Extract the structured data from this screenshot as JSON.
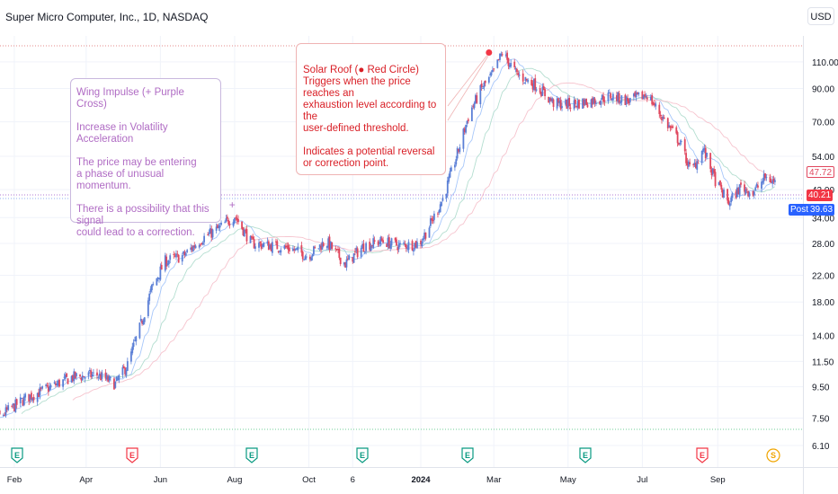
{
  "header": {
    "title": "Super Micro Computer, Inc., 1D, NASDAQ",
    "currency": "USD"
  },
  "annotations": {
    "left_box": "Wing Impulse (+ Purple Cross)\n\nIncrease in Volatility Acceleration\n\nThe price may be entering\na phase of unusual momentum.\n\nThere is a possibility that this signal\ncould lead to a correction.",
    "right_box_title": "Solar Roof (● Red Circle)",
    "right_box_body": "\nTriggers when the price reaches an\nexhaustion level according to the\nuser-defined threshold.\n\nIndicates a potential reversal\nor correction point.",
    "purple_marker": "+"
  },
  "price_tags": {
    "upper": "47.72",
    "current": "40.21",
    "post_label": "Post",
    "post_value": "39.63"
  },
  "colors": {
    "up": "#5b7fd6",
    "down": "#e0475e",
    "callout_purple": "#b06cc4",
    "callout_red": "#d91f26",
    "post": "#2962ff",
    "current": "#f23645"
  },
  "events": [
    {
      "type": "E",
      "color": "#089981"
    },
    {
      "type": "E",
      "color": "#f23645"
    },
    {
      "type": "E",
      "color": "#089981"
    },
    {
      "type": "E",
      "color": "#089981"
    },
    {
      "type": "E",
      "color": "#089981"
    },
    {
      "type": "E",
      "color": "#089981"
    },
    {
      "type": "E",
      "color": "#f23645"
    },
    {
      "type": "S",
      "color": "#f0a500"
    }
  ],
  "chart_data": {
    "type": "candlestick",
    "scale": "log",
    "ylim": [
      6.1,
      125
    ],
    "y_ticks": [
      "110.00",
      "90.00",
      "70.00",
      "54.00",
      "42.00",
      "34.00",
      "28.00",
      "22.00",
      "18.00",
      "14.00",
      "11.50",
      "9.50",
      "7.50",
      "6.10"
    ],
    "x_ticks": [
      "Feb",
      "Apr",
      "Jun",
      "Aug",
      "Oct",
      "6",
      "2024",
      "Mar",
      "May",
      "Jul",
      "Sep"
    ],
    "x_dates": [
      "2023-02-01",
      "2023-04-01",
      "2023-06-01",
      "2023-08-01",
      "2023-10-01",
      "2023-11-06",
      "2024-01-01",
      "2024-03-01",
      "2024-05-01",
      "2024-07-01",
      "2024-09-01"
    ],
    "series": [
      {
        "name": "",
        "points": [
          [
            "2023-01-03",
            7.0
          ],
          [
            "2023-01-20",
            7.6
          ],
          [
            "2023-02-10",
            8.7
          ],
          [
            "2023-03-01",
            9.4
          ],
          [
            "2023-03-20",
            10.2
          ],
          [
            "2023-04-10",
            10.4
          ],
          [
            "2023-04-25",
            9.7
          ],
          [
            "2023-05-05",
            11.2
          ],
          [
            "2023-05-15",
            14.8
          ],
          [
            "2023-05-25",
            20.0
          ],
          [
            "2023-06-05",
            24.5
          ],
          [
            "2023-06-20",
            25.5
          ],
          [
            "2023-07-05",
            29.0
          ],
          [
            "2023-07-20",
            31.5
          ],
          [
            "2023-08-01",
            34.5
          ],
          [
            "2023-08-15",
            28.0
          ],
          [
            "2023-08-31",
            27.5
          ],
          [
            "2023-09-15",
            27.0
          ],
          [
            "2023-09-30",
            25.5
          ],
          [
            "2023-10-15",
            28.5
          ],
          [
            "2023-10-31",
            24.0
          ],
          [
            "2023-11-15",
            27.5
          ],
          [
            "2023-11-30",
            28.5
          ],
          [
            "2023-12-15",
            27.5
          ],
          [
            "2023-12-31",
            28.0
          ],
          [
            "2024-01-10",
            33.0
          ],
          [
            "2024-01-20",
            40.0
          ],
          [
            "2024-01-31",
            55.0
          ],
          [
            "2024-02-10",
            75.0
          ],
          [
            "2024-02-20",
            90.0
          ],
          [
            "2024-02-29",
            100.0
          ],
          [
            "2024-03-08",
            118.0
          ],
          [
            "2024-03-20",
            100.0
          ],
          [
            "2024-04-05",
            92.0
          ],
          [
            "2024-04-20",
            80.0
          ],
          [
            "2024-05-05",
            80.0
          ],
          [
            "2024-05-20",
            82.0
          ],
          [
            "2024-06-05",
            85.0
          ],
          [
            "2024-06-20",
            82.0
          ],
          [
            "2024-07-05",
            86.0
          ],
          [
            "2024-07-20",
            70.0
          ],
          [
            "2024-08-01",
            60.0
          ],
          [
            "2024-08-10",
            48.0
          ],
          [
            "2024-08-20",
            57.0
          ],
          [
            "2024-08-31",
            44.0
          ],
          [
            "2024-09-10",
            38.0
          ],
          [
            "2024-09-20",
            43.0
          ],
          [
            "2024-09-30",
            41.0
          ],
          [
            "2024-10-10",
            46.0
          ],
          [
            "2024-10-20",
            44.0
          ]
        ]
      }
    ],
    "markers": [
      {
        "label": "Wing Impulse",
        "symbol": "+",
        "date": "2023-07-30",
        "price": 37.5
      },
      {
        "label": "Solar Roof",
        "symbol": "●",
        "date": "2024-02-26",
        "price": 118.0
      }
    ]
  }
}
